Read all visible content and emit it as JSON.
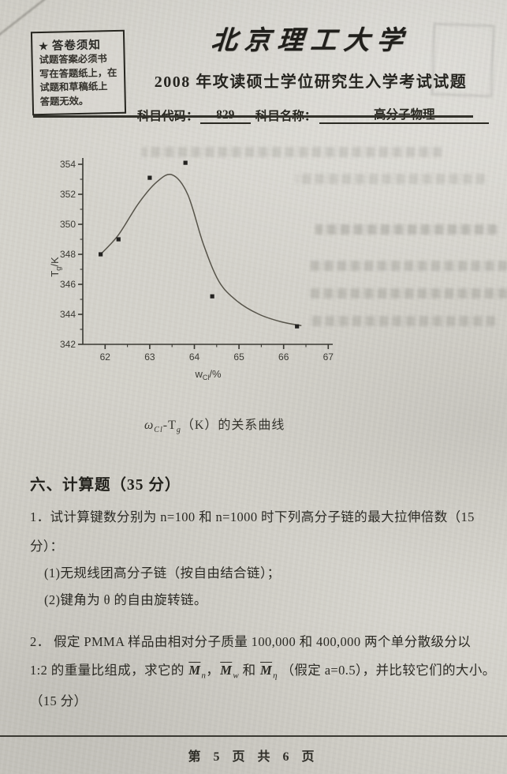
{
  "notice_box": {
    "star": "★",
    "title": "答卷须知",
    "lines": [
      "试题答案必须书",
      "写在答题纸上，在",
      "试题和草稿纸上",
      "答题无效。"
    ]
  },
  "header": {
    "university": "北京理工大学",
    "exam_title": "2008 年攻读硕士学位研究生入学考试试题",
    "subject_code_label": "科目代码：",
    "subject_code": "829",
    "subject_name_label": "科目名称：",
    "subject_name": "高分子物理"
  },
  "chart_data": {
    "type": "scatter",
    "title": "ωCl-Tg(K) 的关系曲线",
    "xlabel": "wCl/%",
    "ylabel": "Tg/K",
    "xlabel_parts": {
      "base": "w",
      "sub": "Cl",
      "rest": "/%"
    },
    "ylabel_parts": {
      "base": "T",
      "sub": "g",
      "rest": "/K"
    },
    "xlim": [
      61.5,
      67.1
    ],
    "ylim": [
      342,
      355
    ],
    "x_ticks": [
      62,
      63,
      64,
      65,
      66,
      67
    ],
    "y_ticks": [
      342,
      344,
      346,
      348,
      350,
      352,
      354
    ],
    "x_minor_ticks": [
      62.5,
      63.5,
      64.5,
      65.5,
      66.5
    ],
    "y_minor_ticks": [
      343,
      345,
      347,
      349,
      351,
      353
    ],
    "marker": "filled-square",
    "grid": false,
    "legend": "none",
    "points_x": [
      61.9,
      62.3,
      63.0,
      63.8,
      64.4,
      66.3
    ],
    "points_y": [
      348.0,
      349.0,
      353.1,
      354.1,
      345.2,
      343.2
    ],
    "curve_points": [
      [
        61.9,
        348.0
      ],
      [
        62.3,
        349.3
      ],
      [
        62.75,
        351.4
      ],
      [
        63.15,
        352.8
      ],
      [
        63.5,
        353.3
      ],
      [
        63.85,
        352.0
      ],
      [
        64.2,
        348.7
      ],
      [
        64.55,
        346.2
      ],
      [
        64.95,
        344.9
      ],
      [
        65.45,
        344.0
      ],
      [
        65.95,
        343.5
      ],
      [
        66.4,
        343.25
      ]
    ]
  },
  "caption": {
    "omega": "ω",
    "omega_sub": "Cl",
    "dash": "-T",
    "t_sub": "g",
    "rest": "（K）的关系曲线"
  },
  "section": {
    "heading": "六、计算题（35 分）"
  },
  "q1": {
    "line1": "1．试计算键数分别为 n=100 和 n=1000 时下列高分子链的最大拉伸倍数（15",
    "line2": "分）：",
    "item1": "(1)无规线团高分子链（按自由结合链）；",
    "item2": "(2)键角为 θ 的自由旋转链。"
  },
  "q2": {
    "line1": "2． 假定 PMMA 样品由相对分子质量 100,000 和 400,000 两个单分散级分以",
    "line2_pre": "1:2 的重量比组成，求它的",
    "m_n": {
      "base": "M",
      "sub": "n"
    },
    "sep1": "，",
    "m_w": {
      "base": "M",
      "sub": "w"
    },
    "sep2": " 和 ",
    "m_eta": {
      "base": "M",
      "sub": "η"
    },
    "line2_post": "（假定 a=0.5），并比较它们的大小。",
    "line3": "（15 分）"
  },
  "footer": {
    "page_text": "第 5 页 共 6 页"
  }
}
